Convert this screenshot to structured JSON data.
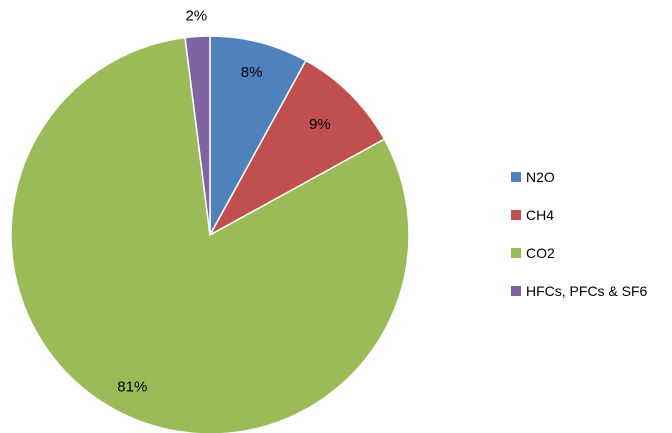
{
  "chart_data": {
    "type": "pie",
    "categories": [
      "N2O",
      "CH4",
      "CO2",
      "HFCs, PFCs & SF6"
    ],
    "values": [
      8,
      9,
      81,
      2
    ],
    "data_labels": [
      "8%",
      "9%",
      "81%",
      "2%"
    ],
    "colors": [
      "#4F81BD",
      "#C0504D",
      "#9BBB59",
      "#8064A2"
    ],
    "legend_position": "right",
    "start_angle": "top",
    "direction": "clockwise"
  }
}
